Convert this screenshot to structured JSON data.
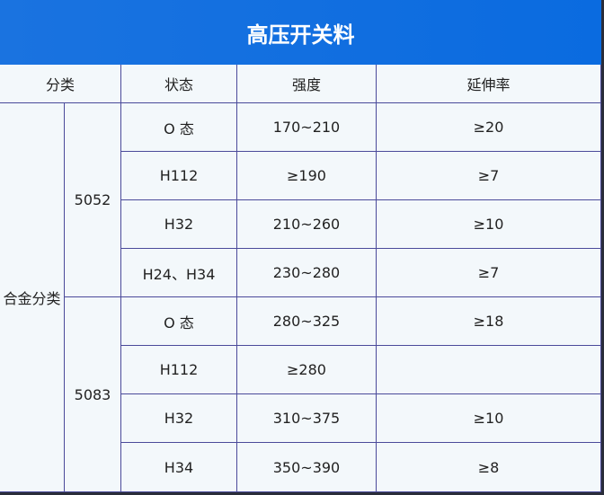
{
  "title": "高压开关料",
  "headers": [
    "分类",
    "状态",
    "强度",
    "延伸率"
  ],
  "category": "合金分类",
  "groups": [
    {
      "alloy": "5052",
      "rows": [
        {
          "state": "O 态",
          "strength": "170~210",
          "elongation": "≥20"
        },
        {
          "state": "H112",
          "strength": "≥190",
          "elongation": "≥7"
        },
        {
          "state": "H32",
          "strength": "210~260",
          "elongation": "≥10"
        },
        {
          "state": "H24、H34",
          "strength": "230~280",
          "elongation": "≥7"
        }
      ]
    },
    {
      "alloy": "5083",
      "rows": [
        {
          "state": "O 态",
          "strength": "280~325",
          "elongation": "≥18"
        },
        {
          "state": "H112",
          "strength": "≥280",
          "elongation": ""
        },
        {
          "state": "H32",
          "strength": "310~375",
          "elongation": "≥10"
        },
        {
          "state": "H34",
          "strength": "350~390",
          "elongation": "≥8"
        }
      ]
    }
  ],
  "colors": {
    "header": "#0a6be0",
    "border": "#4a4a9a",
    "cell": "#f3f8fb"
  }
}
